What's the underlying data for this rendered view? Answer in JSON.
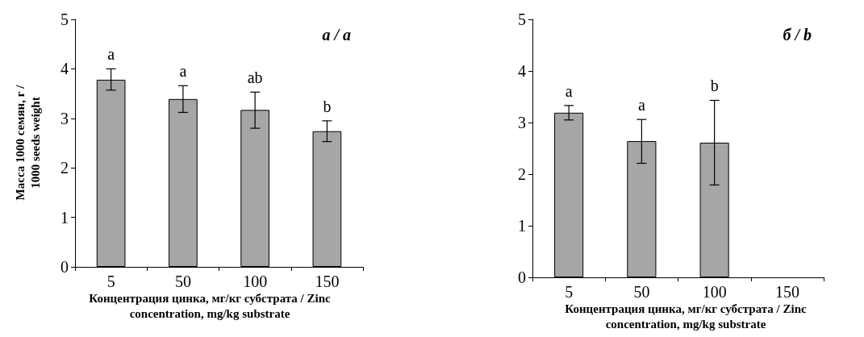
{
  "chart_data": [
    {
      "type": "bar",
      "title": "a / a",
      "xlabel": "Концентрация цинка, мг/кг субстрата / Zinc concentration, mg/kg substrate",
      "ylabel": "Масса 1000 семян, г / 1000 seeds weight",
      "categories": [
        "5",
        "50",
        "100",
        "150"
      ],
      "values": [
        3.78,
        3.39,
        3.17,
        2.74
      ],
      "color": "#a6a6a6",
      "errors": [
        [
          3.57,
          4.0
        ],
        [
          3.12,
          3.66
        ],
        [
          2.8,
          3.53
        ],
        [
          2.53,
          2.95
        ]
      ],
      "ylim": [
        0,
        5
      ],
      "yticks": [
        0,
        1,
        2,
        3,
        4,
        5
      ],
      "grid": false,
      "annotations": [
        {
          "text": "a",
          "x": "5",
          "y": 4.0
        },
        {
          "text": "a",
          "x": "50",
          "y": 3.66
        },
        {
          "text": "ab",
          "x": "100",
          "y": 3.53
        },
        {
          "text": "b",
          "x": "150",
          "y": 2.95
        }
      ]
    },
    {
      "type": "bar",
      "title": "б / b",
      "xlabel": "Концентрация цинка, мг/кг субстрата / Zinc concentration, mg/kg substrate",
      "categories": [
        "5",
        "50",
        "100",
        "150"
      ],
      "values": [
        3.19,
        2.64,
        2.61,
        null
      ],
      "color": "#a6a6a6",
      "errors": [
        [
          3.05,
          3.33
        ],
        [
          2.21,
          3.06
        ],
        [
          1.79,
          3.43
        ],
        null
      ],
      "ylim": [
        0,
        5
      ],
      "yticks": [
        0,
        1,
        2,
        3,
        4,
        5
      ],
      "grid": false,
      "annotations": [
        {
          "text": "a",
          "x": "5",
          "y": 3.33
        },
        {
          "text": "a",
          "x": "50",
          "y": 3.06
        },
        {
          "text": "b",
          "x": "100",
          "y": 3.43
        }
      ]
    }
  ]
}
